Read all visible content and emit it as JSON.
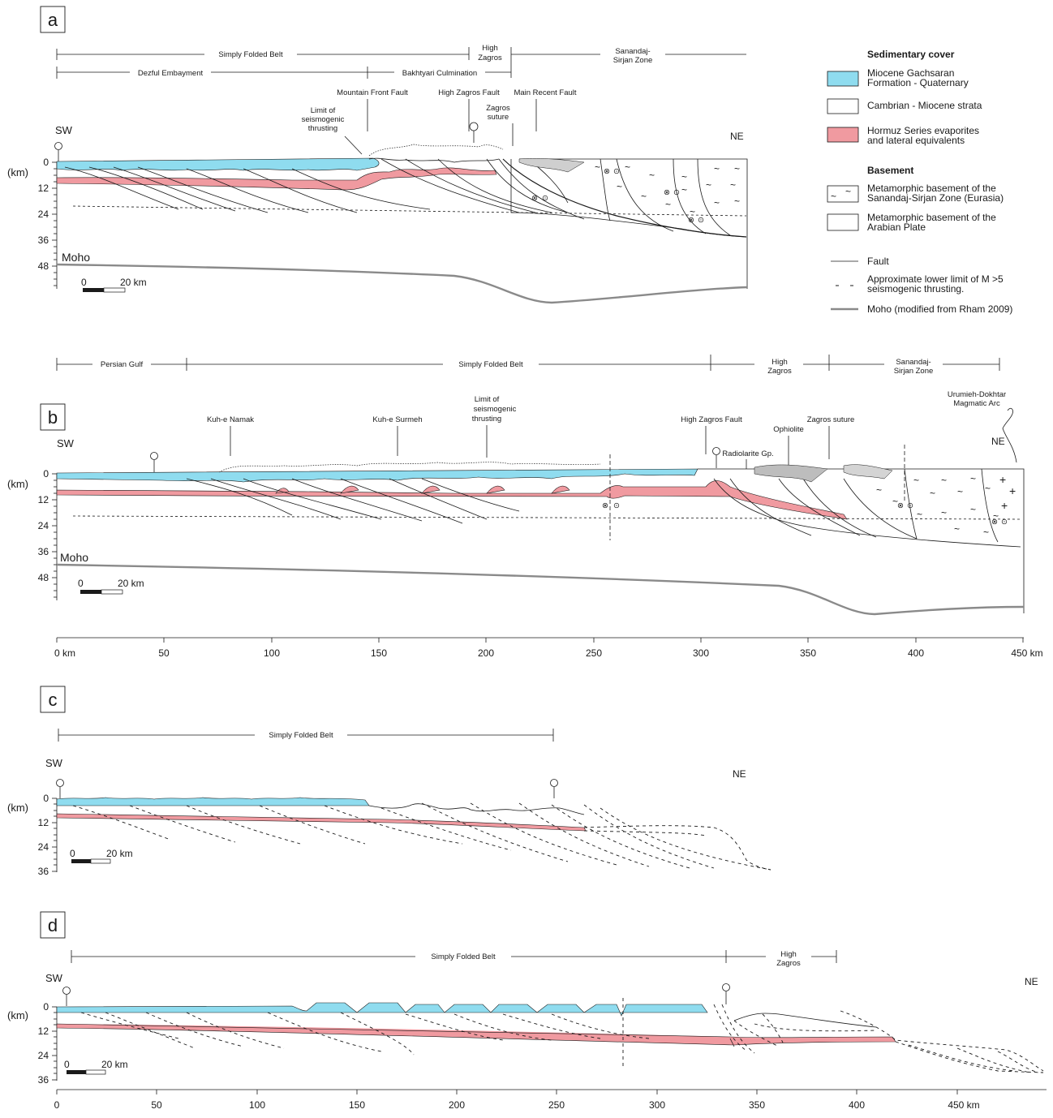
{
  "panels": {
    "a": {
      "label": "a",
      "zones_top": [
        "Simply Folded Belt",
        "High",
        "Zagros",
        "Sanandaj-",
        "Sirjan Zone"
      ],
      "zones_sub": [
        "Dezful Embayment",
        "Bakhtyari Culmination"
      ],
      "callouts": [
        "Mountain Front Fault",
        "Limit of",
        "seismogenic",
        "thrusting",
        "High Zagros Fault",
        "Zagros",
        "suture",
        "Main Recent Fault"
      ],
      "sw": "SW",
      "ne": "NE",
      "km": "(km)",
      "moho": "Moho",
      "depth_ticks": [
        "0",
        "12",
        "24",
        "36",
        "48"
      ],
      "scale_zero": "0",
      "scale_label": "20 km"
    },
    "b": {
      "label": "b",
      "zones": [
        "Persian Gulf",
        "Simply Folded Belt",
        "High",
        "Zagros",
        "Sanandaj-",
        "Sirjan Zone"
      ],
      "callouts": [
        "Kuh-e Namak",
        "Kuh-e Surmeh",
        "Limit of",
        "seismogenic",
        "thrusting",
        "High Zagros Fault",
        "Ophiolite",
        "Zagros suture",
        "Radiolarite Gp.",
        "Urumieh-Dokhtar",
        "Magmatic Arc"
      ],
      "sw": "SW",
      "ne": "NE",
      "km": "(km)",
      "moho": "Moho",
      "depth_ticks": [
        "0",
        "12",
        "24",
        "36",
        "48"
      ],
      "scale_zero": "0",
      "scale_label": "20 km",
      "x_ticks": [
        "0 km",
        "50",
        "100",
        "150",
        "200",
        "250",
        "300",
        "350",
        "400",
        "450 km"
      ]
    },
    "c": {
      "label": "c",
      "zones": [
        "Simply Folded Belt"
      ],
      "sw": "SW",
      "ne": "NE",
      "km": "(km)",
      "depth_ticks": [
        "0",
        "12",
        "24",
        "36"
      ],
      "scale_zero": "0",
      "scale_label": "20 km"
    },
    "d": {
      "label": "d",
      "zones": [
        "Simply Folded Belt",
        "High",
        "Zagros"
      ],
      "sw": "SW",
      "ne": "NE",
      "km": "(km)",
      "depth_ticks": [
        "0",
        "12",
        "24",
        "36"
      ],
      "scale_zero": "0",
      "scale_label": "20 km",
      "x_ticks": [
        "0",
        "50",
        "100",
        "150",
        "200",
        "250",
        "300",
        "350",
        "400",
        "450 km"
      ]
    }
  },
  "legend": {
    "sedimentary_title": "Sedimentary cover",
    "gachsaran_1": "Miocene Gachsaran",
    "gachsaran_2": "Formation - Quaternary",
    "cambrian": "Cambrian - Miocene strata",
    "hormuz_1": "Hormuz Series evaporites",
    "hormuz_2": "and lateral equivalents",
    "basement_title": "Basement",
    "sanandaj_1": "Metamorphic basement of the",
    "sanandaj_2": "Sanandaj-Sirjan Zone (Eurasia)",
    "arabian_1": "Metamorphic basement of the",
    "arabian_2": "Arabian Plate",
    "fault": "Fault",
    "approx_1": "Approximate lower limit of M >5",
    "approx_2": "seismogenic thrusting.",
    "moho": "Moho (modified from Rham 2009)"
  },
  "colors": {
    "cyan": "#8fdcef",
    "pink": "#f09aa0",
    "moho": "#8a8a8a"
  }
}
